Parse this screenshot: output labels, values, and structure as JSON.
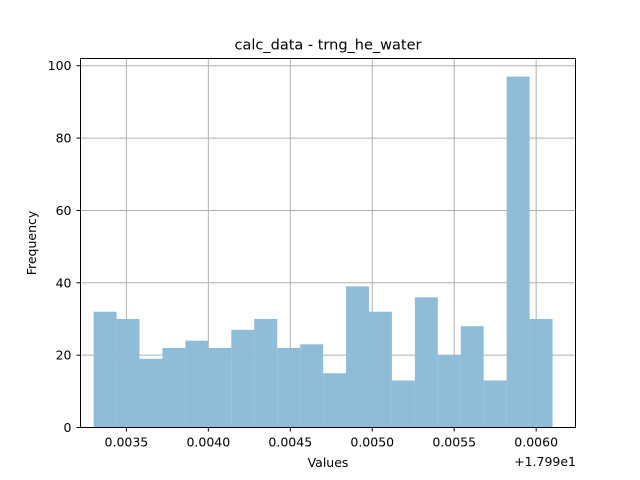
{
  "chart_data": {
    "type": "bar",
    "subtype": "histogram",
    "title": "calc_data - trng_he_water",
    "xlabel": "Values",
    "ylabel": "Frequency",
    "x_offset_label": "+1.799e1",
    "bar_color": "#8fbcd8",
    "grid": true,
    "bin_start": 0.0033,
    "bin_width": 0.00014,
    "values": [
      32,
      30,
      19,
      22,
      24,
      22,
      27,
      30,
      22,
      23,
      15,
      39,
      32,
      13,
      36,
      20,
      28,
      13,
      97,
      30
    ],
    "xlim": [
      0.00322,
      0.00624
    ],
    "ylim": [
      0,
      102
    ],
    "xticks": [
      {
        "value": 0.0035,
        "label": "0.0035"
      },
      {
        "value": 0.004,
        "label": "0.0040"
      },
      {
        "value": 0.0045,
        "label": "0.0045"
      },
      {
        "value": 0.005,
        "label": "0.0050"
      },
      {
        "value": 0.0055,
        "label": "0.0055"
      },
      {
        "value": 0.006,
        "label": "0.0060"
      }
    ],
    "yticks": [
      {
        "value": 0,
        "label": "0"
      },
      {
        "value": 20,
        "label": "20"
      },
      {
        "value": 40,
        "label": "40"
      },
      {
        "value": 60,
        "label": "60"
      },
      {
        "value": 80,
        "label": "80"
      },
      {
        "value": 100,
        "label": "100"
      }
    ]
  }
}
